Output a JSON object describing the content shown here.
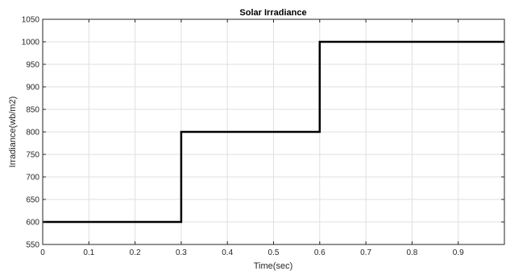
{
  "chart_data": {
    "type": "line",
    "title": "Solar Irradiance",
    "xlabel": "Time(sec)",
    "ylabel": "Irradiance(wb/m2)",
    "xlim": [
      0,
      1
    ],
    "ylim": [
      550,
      1050
    ],
    "xticks": [
      0,
      0.1,
      0.2,
      0.3,
      0.4,
      0.5,
      0.6,
      0.7,
      0.8,
      0.9
    ],
    "xtick_labels": [
      "0",
      "0.1",
      "0.2",
      "0.3",
      "0.4",
      "0.5",
      "0.6",
      "0.7",
      "0.8",
      "0.9"
    ],
    "yticks": [
      550,
      600,
      650,
      700,
      750,
      800,
      850,
      900,
      950,
      1000,
      1050
    ],
    "ytick_labels": [
      "550",
      "600",
      "650",
      "700",
      "750",
      "800",
      "850",
      "900",
      "950",
      "1000",
      "1050"
    ],
    "grid": true,
    "series": [
      {
        "x": [
          0,
          0.3,
          0.3,
          0.6,
          0.6,
          1.0
        ],
        "y": [
          600,
          600,
          800,
          800,
          1000,
          1000
        ],
        "color": "#000000"
      }
    ]
  }
}
